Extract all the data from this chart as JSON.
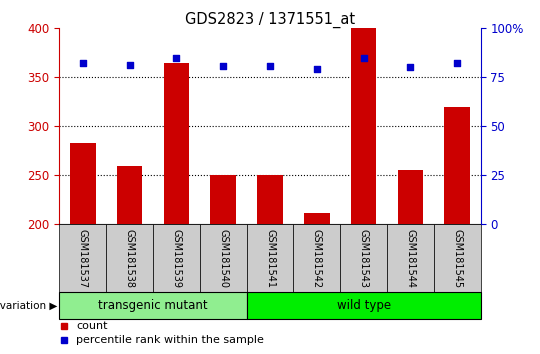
{
  "title": "GDS2823 / 1371551_at",
  "samples": [
    "GSM181537",
    "GSM181538",
    "GSM181539",
    "GSM181540",
    "GSM181541",
    "GSM181542",
    "GSM181543",
    "GSM181544",
    "GSM181545"
  ],
  "counts": [
    283,
    260,
    365,
    250,
    250,
    212,
    400,
    255,
    320
  ],
  "percentiles": [
    365,
    363,
    370,
    362,
    362,
    358,
    370,
    361,
    365
  ],
  "groups": [
    {
      "label": "transgenic mutant",
      "start": 0,
      "end": 3,
      "color": "#90EE90"
    },
    {
      "label": "wild type",
      "start": 4,
      "end": 8,
      "color": "#00EE00"
    }
  ],
  "bar_color": "#CC0000",
  "dot_color": "#0000CC",
  "ylim_left": [
    200,
    400
  ],
  "ylim_right": [
    0,
    100
  ],
  "grid_values": [
    250,
    300,
    350
  ],
  "ylabel_left_color": "#CC0000",
  "ylabel_right_color": "#0000CC",
  "bg_color": "#FFFFFF",
  "tick_area_color": "#CCCCCC",
  "legend_count_color": "#CC0000",
  "legend_pct_color": "#0000CC",
  "bar_width": 0.55
}
